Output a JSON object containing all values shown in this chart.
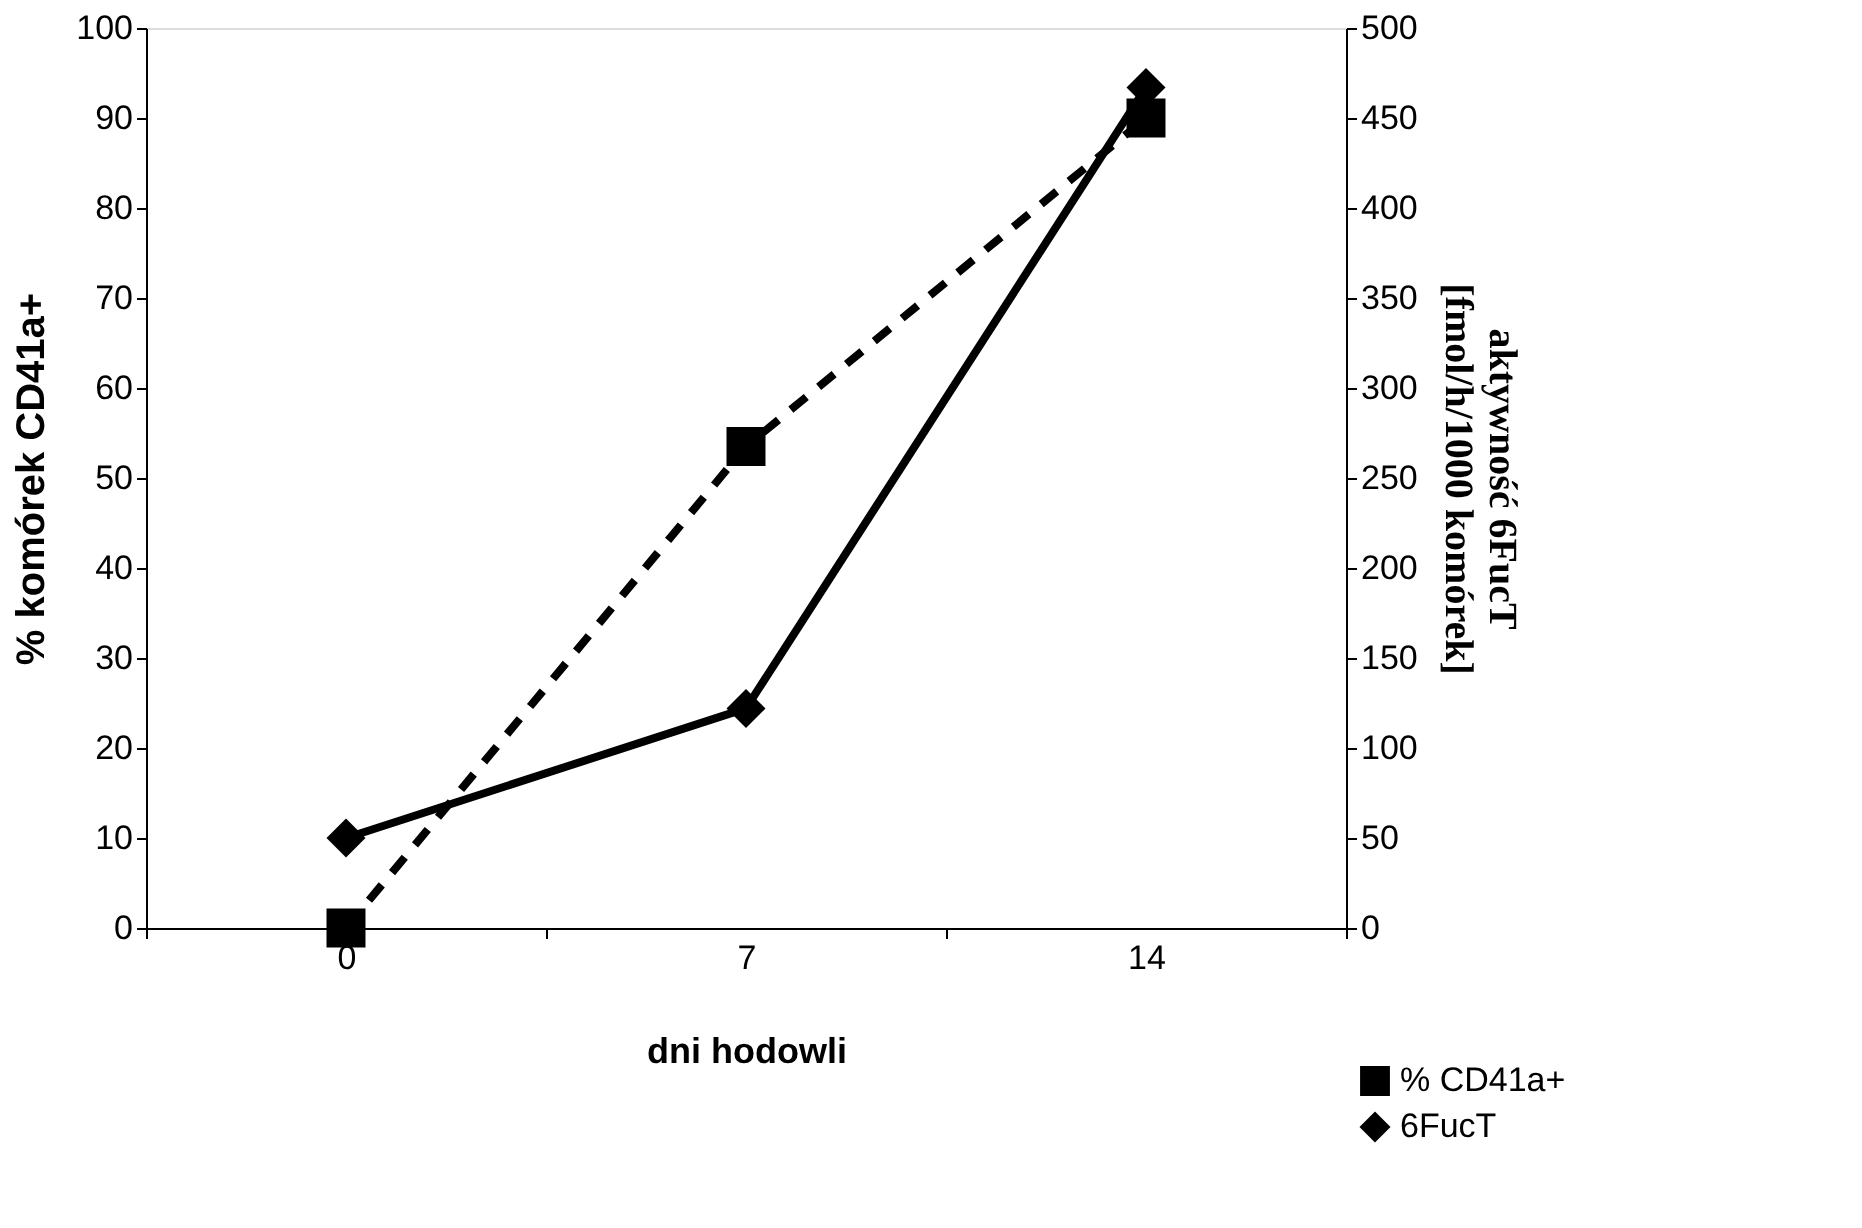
{
  "chart_data": {
    "type": "line",
    "xlabel": "dni hodowli",
    "ylabel": "% komórek CD41a+",
    "y2label": "aktywność 6FucT\n[fmol/h/1000 komórek]",
    "categories": [
      "0",
      "7",
      "14"
    ],
    "series": [
      {
        "name": "% CD41a+",
        "color": "#000000",
        "values": [
          0,
          53.5,
          90
        ],
        "marker": "square",
        "line_style": "dashed"
      },
      {
        "name": "6FucT",
        "color": "#000000",
        "values": [
          50,
          122,
          467
        ],
        "marker": "diamond",
        "line_style": "solid",
        "axis": "y2"
      }
    ],
    "ylim": [
      0,
      100
    ],
    "yticks": [
      0,
      10,
      20,
      30,
      40,
      50,
      60,
      70,
      80,
      90,
      100
    ],
    "y2lim": [
      0,
      500
    ],
    "y2ticks": [
      0,
      50,
      100,
      150,
      200,
      250,
      300,
      350,
      400,
      450,
      500
    ],
    "grid": false,
    "legend": "bottom right"
  }
}
